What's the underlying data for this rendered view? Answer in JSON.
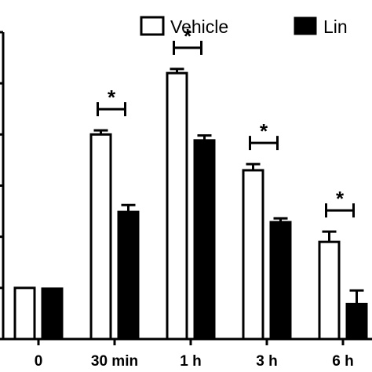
{
  "chart_data": {
    "type": "bar",
    "categories": [
      "0",
      "30 min",
      "1 h",
      "3 h",
      "6 h"
    ],
    "series": [
      {
        "name": "Vehicle",
        "values": [
          1.0,
          4.0,
          5.2,
          3.3,
          1.9
        ],
        "errors": [
          0.0,
          0.08,
          0.08,
          0.12,
          0.2
        ],
        "fill": "#ffffff"
      },
      {
        "name": "Lin",
        "values": [
          1.0,
          2.5,
          3.9,
          2.3,
          0.7
        ],
        "errors": [
          0.0,
          0.12,
          0.08,
          0.06,
          0.25
        ],
        "fill": "#000000"
      }
    ],
    "significance": [
      "",
      "*",
      "*",
      "*",
      "*"
    ],
    "ylim": [
      0,
      6
    ],
    "title": "",
    "xlabel": "",
    "ylabel": "",
    "legend_position": "top-right",
    "grid": false
  }
}
